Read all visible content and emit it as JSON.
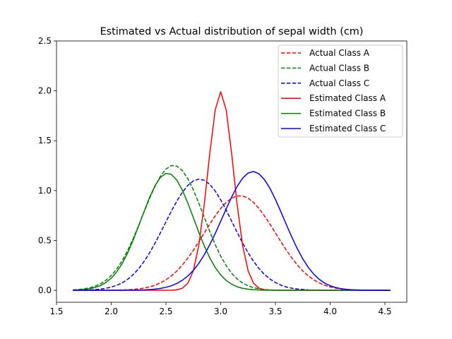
{
  "chart_data": {
    "type": "line",
    "title": "Estimated vs Actual distribution of  sepal width (cm)",
    "xlabel": "",
    "ylabel": "",
    "xlim": [
      1.5,
      4.7
    ],
    "ylim": [
      -0.12,
      2.5
    ],
    "xticks": [
      1.5,
      2.0,
      2.5,
      3.0,
      3.5,
      4.0,
      4.5
    ],
    "xtick_labels": [
      "1.5",
      "2.0",
      "2.5",
      "3.0",
      "3.5",
      "4.0",
      "4.5"
    ],
    "yticks": [
      0.0,
      0.5,
      1.0,
      1.5,
      2.0,
      2.5
    ],
    "ytick_labels": [
      "0.0",
      "0.5",
      "1.0",
      "1.5",
      "2.0",
      "2.5"
    ],
    "grid": false,
    "legend_position": "top-right",
    "x": [
      1.65,
      1.7,
      1.75,
      1.8,
      1.85,
      1.9,
      1.95,
      2.0,
      2.05,
      2.1,
      2.15,
      2.2,
      2.25,
      2.3,
      2.35,
      2.4,
      2.45,
      2.5,
      2.55,
      2.6,
      2.65,
      2.7,
      2.75,
      2.8,
      2.85,
      2.9,
      2.95,
      3.0,
      3.05,
      3.1,
      3.15,
      3.2,
      3.25,
      3.3,
      3.35,
      3.4,
      3.45,
      3.5,
      3.55,
      3.6,
      3.65,
      3.7,
      3.75,
      3.8,
      3.85,
      3.9,
      3.95,
      4.0,
      4.05,
      4.1,
      4.15,
      4.2,
      4.25,
      4.3,
      4.35,
      4.4,
      4.45,
      4.5,
      4.55
    ],
    "series": [
      {
        "name": "Actual Class A",
        "color": "#ff0000",
        "dash": "dashed",
        "values": [
          0.0,
          0.0,
          0.0,
          0.0,
          0.0,
          0.0,
          0.001,
          0.001,
          0.002,
          0.003,
          0.005,
          0.009,
          0.014,
          0.022,
          0.034,
          0.051,
          0.074,
          0.105,
          0.145,
          0.194,
          0.254,
          0.324,
          0.402,
          0.487,
          0.575,
          0.663,
          0.746,
          0.82,
          0.881,
          0.924,
          0.946,
          0.946,
          0.924,
          0.881,
          0.82,
          0.746,
          0.663,
          0.575,
          0.487,
          0.402,
          0.324,
          0.254,
          0.194,
          0.145,
          0.105,
          0.074,
          0.051,
          0.034,
          0.022,
          0.014,
          0.009,
          0.005,
          0.003,
          0.002,
          0.001,
          0.001,
          0.0,
          0.0,
          0.0
        ]
      },
      {
        "name": "Actual Class B",
        "color": "#008000",
        "dash": "dashed",
        "values": [
          0.004,
          0.008,
          0.014,
          0.024,
          0.04,
          0.064,
          0.099,
          0.148,
          0.213,
          0.297,
          0.399,
          0.518,
          0.649,
          0.786,
          0.92,
          1.043,
          1.145,
          1.216,
          1.251,
          1.245,
          1.2,
          1.118,
          1.007,
          0.874,
          0.732,
          0.59,
          0.458,
          0.342,
          0.247,
          0.171,
          0.114,
          0.073,
          0.045,
          0.027,
          0.015,
          0.008,
          0.004,
          0.002,
          0.001,
          0.0,
          0.0,
          0.0,
          0.0,
          0.0,
          0.0,
          0.0,
          0.0,
          0.0,
          0.0,
          0.0,
          0.0,
          0.0,
          0.0,
          0.0,
          0.0,
          0.0,
          0.0,
          0.0,
          0.0
        ]
      },
      {
        "name": "Actual Class C",
        "color": "#0000ff",
        "dash": "dashed",
        "values": [
          0.001,
          0.001,
          0.002,
          0.004,
          0.007,
          0.012,
          0.02,
          0.032,
          0.05,
          0.075,
          0.11,
          0.157,
          0.216,
          0.289,
          0.375,
          0.472,
          0.578,
          0.687,
          0.795,
          0.896,
          0.983,
          1.052,
          1.097,
          1.115,
          1.103,
          1.062,
          0.995,
          0.907,
          0.804,
          0.693,
          0.582,
          0.475,
          0.377,
          0.291,
          0.218,
          0.159,
          0.113,
          0.078,
          0.052,
          0.033,
          0.021,
          0.013,
          0.008,
          0.004,
          0.002,
          0.001,
          0.001,
          0.0,
          0.0,
          0.0,
          0.0,
          0.0,
          0.0,
          0.0,
          0.0,
          0.0,
          0.0,
          0.0,
          0.0
        ]
      },
      {
        "name": "Estimated Class A",
        "color": "#ff0000",
        "dash": "solid",
        "values": [
          0.0,
          0.0,
          0.0,
          0.0,
          0.0,
          0.0,
          0.0,
          0.0,
          0.0,
          0.0,
          0.0,
          0.0,
          0.0,
          0.0,
          0.0,
          0.0,
          0.0,
          0.0,
          0.001,
          0.005,
          0.021,
          0.071,
          0.196,
          0.451,
          0.862,
          1.37,
          1.81,
          1.99,
          1.81,
          1.37,
          0.862,
          0.451,
          0.196,
          0.071,
          0.021,
          0.005,
          0.001,
          0.0,
          0.0,
          0.0,
          0.0,
          0.0,
          0.0,
          0.0,
          0.0,
          0.0,
          0.0,
          0.0,
          0.0,
          0.0,
          0.0,
          0.0,
          0.0,
          0.0,
          0.0,
          0.0,
          0.0,
          0.0,
          0.0
        ]
      },
      {
        "name": "Estimated Class B",
        "color": "#008000",
        "dash": "solid",
        "values": [
          0.002,
          0.005,
          0.009,
          0.016,
          0.028,
          0.047,
          0.077,
          0.121,
          0.184,
          0.268,
          0.375,
          0.502,
          0.644,
          0.791,
          0.931,
          1.049,
          1.133,
          1.172,
          1.162,
          1.103,
          1.004,
          0.874,
          0.729,
          0.582,
          0.445,
          0.326,
          0.229,
          0.154,
          0.099,
          0.061,
          0.036,
          0.02,
          0.011,
          0.006,
          0.003,
          0.001,
          0.001,
          0.0,
          0.0,
          0.0,
          0.0,
          0.0,
          0.0,
          0.0,
          0.0,
          0.0,
          0.0,
          0.0,
          0.0,
          0.0,
          0.0,
          0.0,
          0.0,
          0.0,
          0.0,
          0.0,
          0.0,
          0.0,
          0.0
        ]
      },
      {
        "name": "Estimated Class C",
        "color": "#0000ff",
        "dash": "solid",
        "values": [
          0.0,
          0.0,
          0.0,
          0.0,
          0.0,
          0.0,
          0.0,
          0.0,
          0.0,
          0.0,
          0.001,
          0.001,
          0.002,
          0.004,
          0.007,
          0.012,
          0.019,
          0.03,
          0.046,
          0.069,
          0.101,
          0.144,
          0.2,
          0.27,
          0.356,
          0.457,
          0.57,
          0.692,
          0.816,
          0.935,
          1.041,
          1.124,
          1.176,
          1.191,
          1.168,
          1.109,
          1.022,
          0.911,
          0.787,
          0.658,
          0.533,
          0.417,
          0.315,
          0.23,
          0.162,
          0.11,
          0.072,
          0.046,
          0.028,
          0.016,
          0.009,
          0.005,
          0.003,
          0.001,
          0.001,
          0.0,
          0.0,
          0.0,
          0.0
        ]
      }
    ]
  }
}
